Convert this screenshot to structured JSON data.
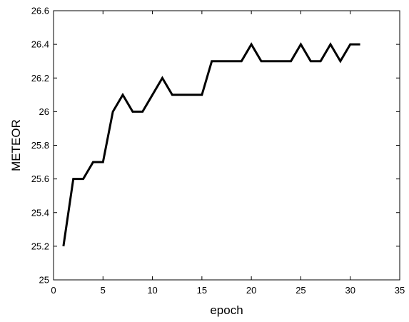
{
  "chart_data": {
    "type": "line",
    "title": "",
    "xlabel": "epoch",
    "ylabel": "METEOR",
    "xlim": [
      0,
      35
    ],
    "ylim": [
      25,
      26.6
    ],
    "xticks": [
      0,
      5,
      10,
      15,
      20,
      25,
      30,
      35
    ],
    "yticks": [
      25,
      25.2,
      25.4,
      25.6,
      25.8,
      26,
      26.2,
      26.4,
      26.6
    ],
    "xtick_labels": [
      "0",
      "5",
      "10",
      "15",
      "20",
      "25",
      "30",
      "35"
    ],
    "ytick_labels": [
      "25",
      "25.2",
      "25.4",
      "25.6",
      "25.8",
      "26",
      "26.2",
      "26.4",
      "26.6"
    ],
    "grid": false,
    "series": [
      {
        "x": [
          1,
          2,
          3,
          4,
          5,
          6,
          7,
          8,
          9,
          10,
          11,
          12,
          13,
          14,
          15,
          16,
          17,
          18,
          19,
          20,
          21,
          22,
          23,
          24,
          25,
          26,
          27,
          28,
          29,
          30,
          31
        ],
        "y": [
          25.2,
          25.6,
          25.6,
          25.7,
          25.7,
          26.0,
          26.1,
          26.0,
          26.0,
          26.1,
          26.2,
          26.1,
          26.1,
          26.1,
          26.1,
          26.3,
          26.3,
          26.3,
          26.3,
          26.4,
          26.3,
          26.3,
          26.3,
          26.3,
          26.4,
          26.3,
          26.3,
          26.4,
          26.3,
          26.4,
          26.4
        ],
        "color": "#000000"
      }
    ]
  }
}
